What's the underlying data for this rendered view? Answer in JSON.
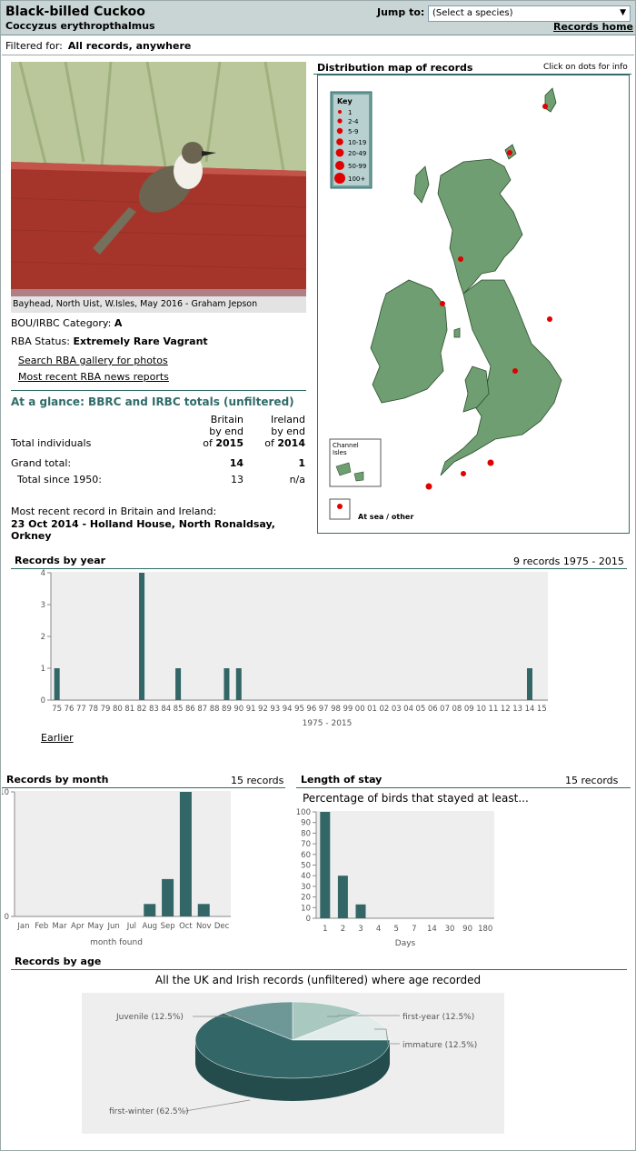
{
  "header": {
    "common_name": "Black-billed Cuckoo",
    "scientific_name": "Coccyzus erythropthalmus",
    "jump_label": "Jump to:",
    "jump_value": "(Select a species)",
    "records_home": "Records home"
  },
  "filter": {
    "label": "Filtered for:",
    "value": "All records, anywhere"
  },
  "photo": {
    "caption": "Bayhead, North Uist, W.Isles, May 2016 - Graham Jepson"
  },
  "status": {
    "category_label": "BOU/IRBC Category:",
    "category_value": "A",
    "rba_label": "RBA Status:",
    "rba_value": "Extremely Rare Vagrant",
    "gallery_link": "Search RBA gallery for photos",
    "news_link": "Most recent RBA news reports"
  },
  "glance": {
    "title": "At a glance: BBRC and IRBC totals (unfiltered)",
    "col_britain": [
      "Britain",
      "by end",
      "of"
    ],
    "britain_year": "2015",
    "col_ireland": [
      "Ireland",
      "by end",
      "of"
    ],
    "ireland_year": "2014",
    "row_label": "Total individuals",
    "grand_total_label": "Grand total:",
    "grand_total_britain": "14",
    "grand_total_ireland": "1",
    "since_label": "Total since 1950:",
    "since_britain": "13",
    "since_ireland": "n/a"
  },
  "recent": {
    "label": "Most recent record in Britain and Ireland:",
    "line1": "23 Oct 2014  - Holland House, North Ronaldsay,",
    "line2": "Orkney"
  },
  "map": {
    "title": "Distribution map of records",
    "hint": "Click on dots for info",
    "key_title": "Key",
    "key_items": [
      "1",
      "2-4",
      "5-9",
      "10-19",
      "20-49",
      "50-99",
      "100+"
    ],
    "channel_label_1": "Channel",
    "channel_label_2": "Isles",
    "at_sea_label": "At sea / other",
    "land_color": "#6e9e72",
    "dot_color": "#e00000"
  },
  "by_year": {
    "title": "Records by year",
    "summary": "9 records 1975 - 2015",
    "range_label": "1975 - 2015",
    "earlier_link": "Earlier"
  },
  "by_month": {
    "title": "Records by month",
    "summary": "15 records"
  },
  "stay": {
    "title": "Length of stay",
    "summary": "15 records",
    "subtitle": "Percentage of birds that stayed at least..."
  },
  "by_age": {
    "title": "Records by age",
    "subtitle": "All the UK and Irish records (unfiltered) where age recorded"
  },
  "chart_data": [
    {
      "type": "bar",
      "title": "Records by year",
      "xlabel": "1975 - 2015",
      "ylim": [
        0,
        4
      ],
      "yticks": [
        0,
        1,
        2,
        3,
        4
      ],
      "categories": [
        "75",
        "76",
        "77",
        "78",
        "79",
        "80",
        "81",
        "82",
        "83",
        "84",
        "85",
        "86",
        "87",
        "88",
        "89",
        "90",
        "91",
        "92",
        "93",
        "94",
        "95",
        "96",
        "97",
        "98",
        "99",
        "00",
        "01",
        "02",
        "03",
        "04",
        "05",
        "06",
        "07",
        "08",
        "09",
        "10",
        "11",
        "12",
        "13",
        "14",
        "15"
      ],
      "values": [
        1,
        0,
        0,
        0,
        0,
        0,
        0,
        4,
        0,
        0,
        1,
        0,
        0,
        0,
        1,
        1,
        0,
        0,
        0,
        0,
        0,
        0,
        0,
        0,
        0,
        0,
        0,
        0,
        0,
        0,
        0,
        0,
        0,
        0,
        0,
        0,
        0,
        0,
        0,
        1,
        0
      ],
      "color": "#336666"
    },
    {
      "type": "bar",
      "title": "Records by month",
      "xlabel": "month found",
      "ylim": [
        0,
        10
      ],
      "yticks": [
        0,
        10
      ],
      "categories": [
        "Jan",
        "Feb",
        "Mar",
        "Apr",
        "May",
        "Jun",
        "Jul",
        "Aug",
        "Sep",
        "Oct",
        "Nov",
        "Dec"
      ],
      "values": [
        0,
        0,
        0,
        0,
        0,
        0,
        0,
        1,
        3,
        10,
        1,
        0
      ],
      "color": "#336666"
    },
    {
      "type": "bar",
      "title": "Length of stay",
      "xlabel": "Days",
      "ylim": [
        0,
        100
      ],
      "yticks": [
        0,
        10,
        20,
        30,
        40,
        50,
        60,
        70,
        80,
        90,
        100
      ],
      "categories": [
        "1",
        "2",
        "3",
        "4",
        "5",
        "7",
        "14",
        "30",
        "90",
        "180"
      ],
      "values": [
        100,
        40,
        13,
        0,
        0,
        0,
        0,
        0,
        0,
        0
      ],
      "color": "#336666"
    },
    {
      "type": "pie",
      "title": "All the UK and Irish records (unfiltered) where age recorded",
      "labels": [
        "first-year (12.5%)",
        "immature (12.5%)",
        "first-winter (62.5%)",
        "Juvenile (12.5%)"
      ],
      "values": [
        12.5,
        12.5,
        62.5,
        12.5
      ],
      "colors": [
        "#a8c8c0",
        "#e2ecea",
        "#336666",
        "#6e9898"
      ]
    }
  ]
}
